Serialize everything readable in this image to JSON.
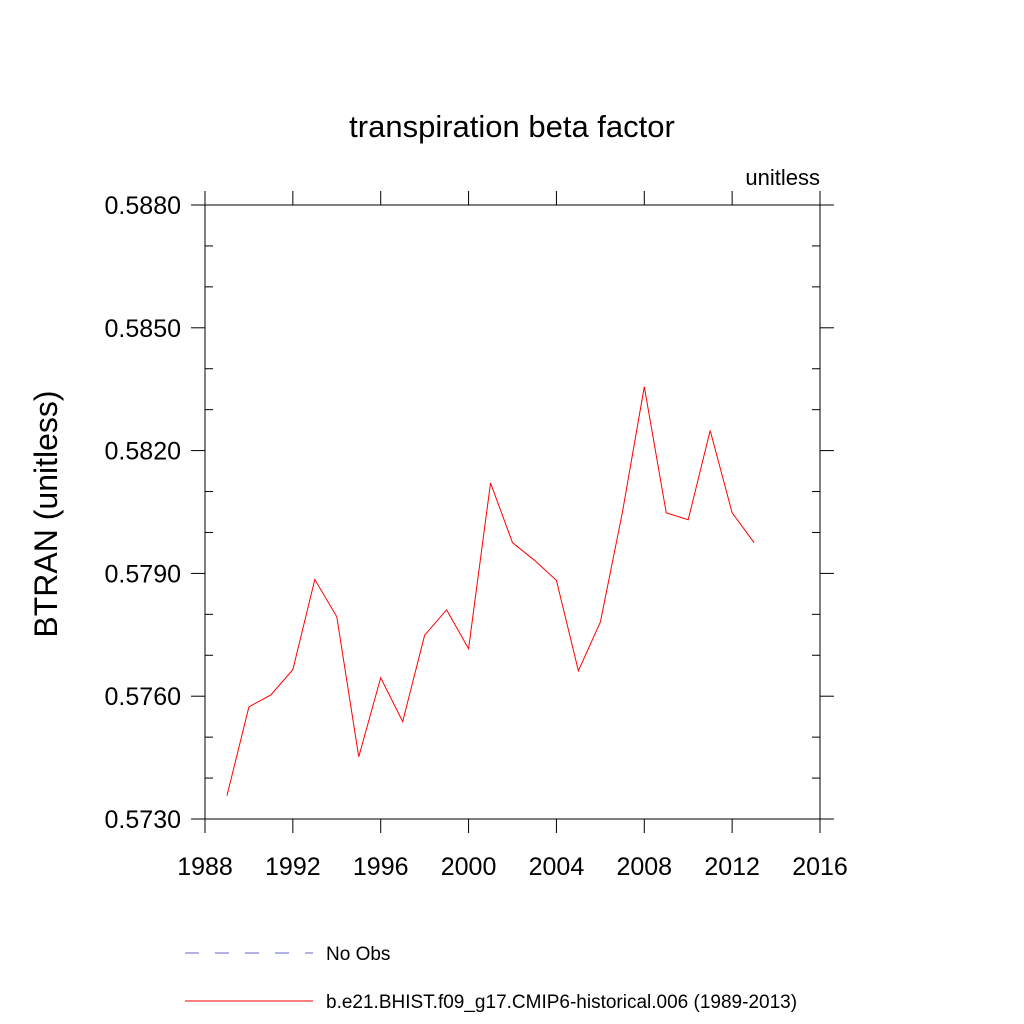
{
  "chart_data": {
    "type": "line",
    "title": "transpiration beta factor",
    "units_label": "unitless",
    "xlabel": "",
    "ylabel": "BTRAN  (unitless)",
    "xlim": [
      1988,
      2016
    ],
    "ylim": [
      0.573,
      0.588
    ],
    "x_ticks": [
      1988,
      1992,
      1996,
      2000,
      2004,
      2008,
      2012,
      2016
    ],
    "y_ticks": [
      "0.5730",
      "0.5760",
      "0.5790",
      "0.5820",
      "0.5850",
      "0.5880"
    ],
    "series": [
      {
        "name": "No Obs",
        "style": "dashed",
        "color": "#6666cc",
        "x": [],
        "values": []
      },
      {
        "name": "b.e21.BHIST.f09_g17.CMIP6-historical.006 (1989-2013)",
        "style": "solid",
        "color": "#ff0000",
        "x": [
          1989,
          1990,
          1991,
          1992,
          1993,
          1994,
          1995,
          1996,
          1997,
          1998,
          1999,
          2000,
          2001,
          2002,
          2003,
          2004,
          2005,
          2006,
          2007,
          2008,
          2009,
          2010,
          2011,
          2012,
          2013
        ],
        "values": [
          0.57357,
          0.57574,
          0.57603,
          0.57665,
          0.57885,
          0.57794,
          0.57452,
          0.57645,
          0.57538,
          0.57749,
          0.57811,
          0.57716,
          0.58121,
          0.57975,
          0.57932,
          0.57883,
          0.57662,
          0.57781,
          0.58048,
          0.58356,
          0.58048,
          0.58031,
          0.58249,
          0.58048,
          0.57975
        ]
      }
    ],
    "legend": {
      "placement": "bottom",
      "entries": [
        {
          "label": "No Obs",
          "style": "dashed",
          "color": "#6666cc"
        },
        {
          "label": "b.e21.BHIST.f09_g17.CMIP6-historical.006 (1989-2013)",
          "style": "solid",
          "color": "#ff0000"
        }
      ]
    }
  }
}
